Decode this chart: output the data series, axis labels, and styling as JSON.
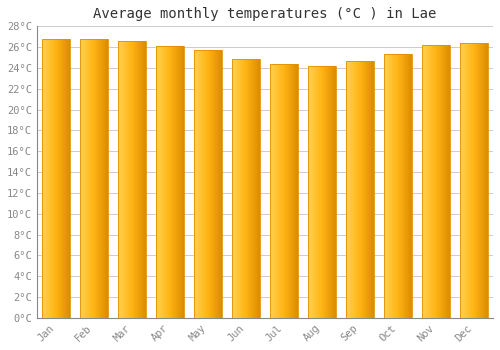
{
  "title": "Average monthly temperatures (°C ) in Lae",
  "months": [
    "Jan",
    "Feb",
    "Mar",
    "Apr",
    "May",
    "Jun",
    "Jul",
    "Aug",
    "Sep",
    "Oct",
    "Nov",
    "Dec"
  ],
  "values": [
    26.8,
    26.8,
    26.6,
    26.1,
    25.7,
    24.9,
    24.4,
    24.2,
    24.7,
    25.3,
    26.2,
    26.4
  ],
  "ylim": [
    0,
    28
  ],
  "ytick_step": 2,
  "bar_color_center": "#FFC020",
  "bar_color_left": "#FFD060",
  "bar_color_right": "#F09000",
  "bar_edge_color": "#E09000",
  "background_color": "#ffffff",
  "grid_color": "#cccccc",
  "title_fontsize": 10,
  "tick_fontsize": 7.5,
  "font_family": "monospace"
}
